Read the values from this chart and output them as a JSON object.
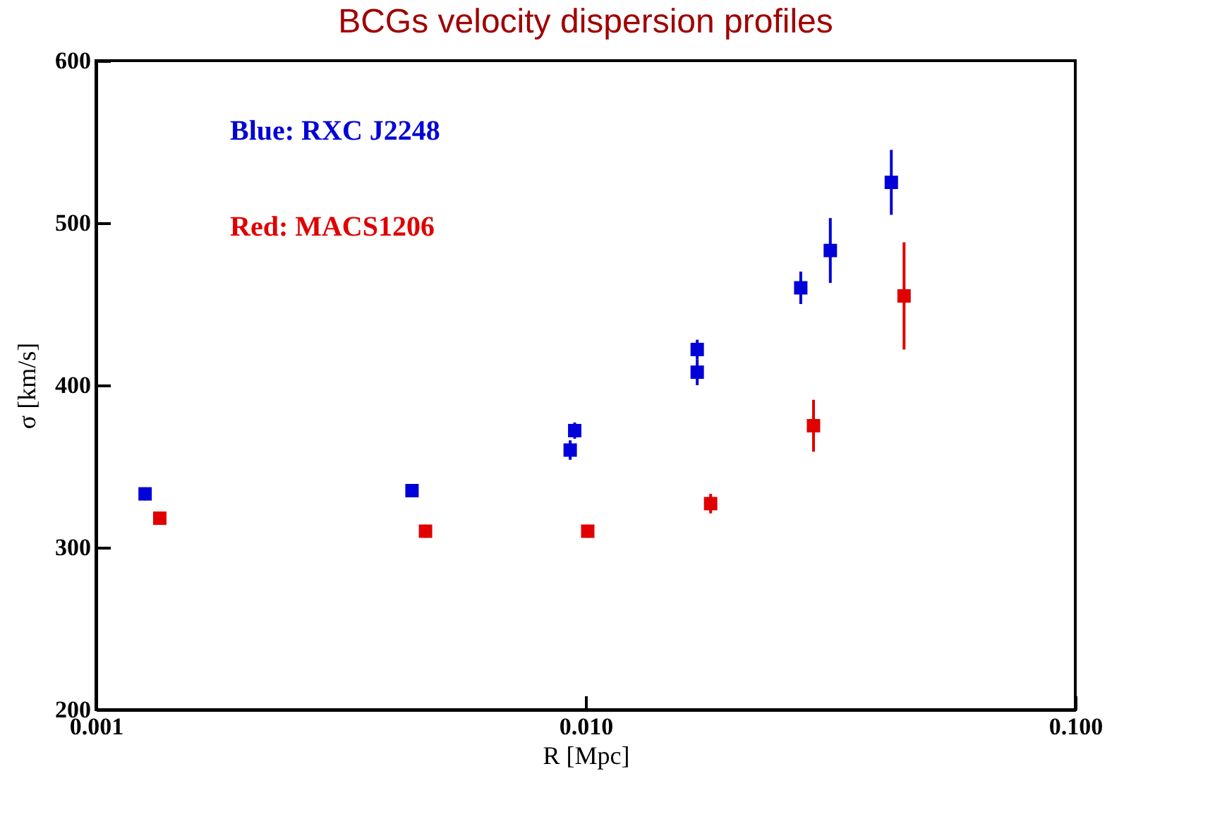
{
  "chart_data": {
    "type": "scatter",
    "title": "BCGs velocity dispersion profiles",
    "xlabel": "R [Mpc]",
    "ylabel": "σ [km/s]",
    "log": "x",
    "xlim": [
      0.001,
      0.1
    ],
    "xticks": [
      0.001,
      {
        "value": 0.01,
        "label": "0.010"
      },
      {
        "value": 0.1,
        "label": "0.100"
      }
    ],
    "ylim": [
      200,
      600
    ],
    "yticks": [
      200,
      300,
      400,
      500,
      600
    ],
    "grid": false,
    "marker": "square",
    "series": [
      {
        "name": "Blue: RXC J2248",
        "color": "#0000d8",
        "x": [
          0.00126,
          0.00442,
          0.0093,
          0.0095,
          0.0169,
          0.0169,
          0.0275,
          0.0316,
          0.0421
        ],
        "values": [
          333,
          335,
          360,
          372,
          408,
          422,
          460,
          483,
          525
        ],
        "errors": [
          4,
          4,
          6,
          5,
          8,
          6,
          10,
          20,
          20
        ]
      },
      {
        "name": "Red: MACS1206",
        "color": "#e00000",
        "x": [
          0.00135,
          0.00471,
          0.0101,
          0.018,
          0.0292,
          0.0447
        ],
        "values": [
          318,
          310,
          310,
          327,
          375,
          455
        ],
        "errors": [
          4,
          4,
          4,
          6,
          16,
          33
        ]
      }
    ]
  }
}
